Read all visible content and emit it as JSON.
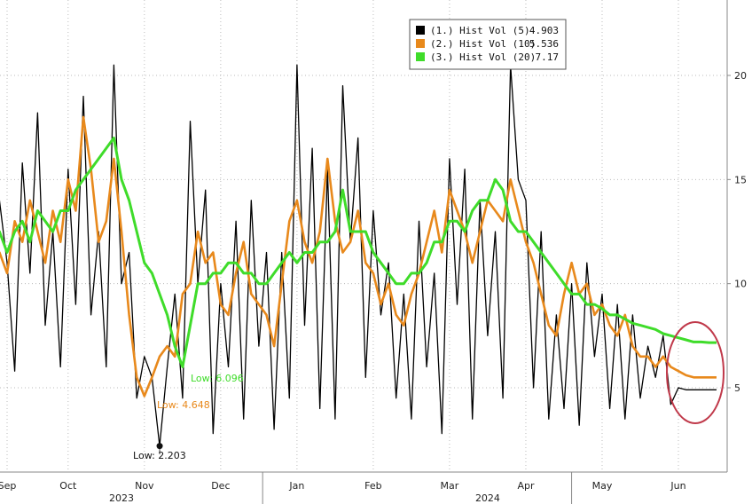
{
  "chart_data": {
    "type": "line",
    "title": "",
    "xlabel": "",
    "ylabel": "",
    "ylim": [
      0,
      24
    ],
    "x_ticks": [
      {
        "label": "Sep",
        "x": 0.2
      },
      {
        "label": "Oct",
        "x": 1.0
      },
      {
        "label": "Nov",
        "x": 2.0
      },
      {
        "label": "Dec",
        "x": 3.0
      },
      {
        "label": "Jan",
        "x": 4.0
      },
      {
        "label": "Feb",
        "x": 5.0
      },
      {
        "label": "Mar",
        "x": 6.0
      },
      {
        "label": "Apr",
        "x": 7.0
      },
      {
        "label": "May",
        "x": 8.0
      },
      {
        "label": "Jun",
        "x": 9.0
      }
    ],
    "year_labels": [
      {
        "label": "2023",
        "x": 1.7
      },
      {
        "label": "2024",
        "x": 6.5
      }
    ],
    "y_ticks": [
      5,
      10,
      15,
      20
    ],
    "grid": true,
    "legend_position": "top-center",
    "series": [
      {
        "name": "(1.) Hist Vol (5)",
        "last_value": "4.903",
        "color": "#000000",
        "x": [
          0.0,
          0.1,
          0.2,
          0.3,
          0.4,
          0.5,
          0.6,
          0.7,
          0.8,
          0.9,
          1.0,
          1.1,
          1.2,
          1.3,
          1.4,
          1.5,
          1.6,
          1.7,
          1.8,
          1.9,
          2.0,
          2.1,
          2.2,
          2.3,
          2.4,
          2.5,
          2.6,
          2.7,
          2.8,
          2.9,
          3.0,
          3.1,
          3.2,
          3.3,
          3.4,
          3.5,
          3.6,
          3.7,
          3.8,
          3.9,
          4.0,
          4.1,
          4.2,
          4.3,
          4.4,
          4.5,
          4.6,
          4.7,
          4.8,
          4.9,
          5.0,
          5.1,
          5.2,
          5.3,
          5.4,
          5.5,
          5.6,
          5.7,
          5.8,
          5.9,
          6.0,
          6.1,
          6.2,
          6.3,
          6.4,
          6.5,
          6.6,
          6.7,
          6.8,
          6.9,
          7.0,
          7.1,
          7.2,
          7.3,
          7.4,
          7.5,
          7.6,
          7.7,
          7.8,
          7.9,
          8.0,
          8.1,
          8.2,
          8.3,
          8.4,
          8.5,
          8.6,
          8.7,
          8.8,
          8.9,
          9.0,
          9.1,
          9.2,
          9.3,
          9.4,
          9.5
        ],
        "y": [
          9.5,
          14.0,
          11.0,
          5.8,
          15.8,
          10.5,
          18.2,
          8.0,
          12.5,
          6.0,
          15.5,
          9.0,
          19.0,
          8.5,
          12.5,
          6.0,
          20.5,
          10.0,
          11.5,
          4.5,
          6.5,
          5.5,
          2.2,
          6.0,
          9.5,
          4.5,
          17.8,
          10.0,
          14.5,
          2.8,
          10.0,
          6.0,
          13.0,
          3.5,
          14.0,
          7.0,
          11.5,
          3.0,
          11.5,
          4.5,
          20.5,
          8.0,
          16.5,
          4.0,
          15.5,
          3.5,
          19.5,
          12.0,
          17.0,
          5.5,
          13.5,
          8.5,
          11.0,
          4.5,
          9.5,
          3.5,
          13.0,
          6.0,
          10.5,
          2.8,
          16.0,
          9.0,
          15.5,
          3.5,
          14.0,
          7.5,
          12.5,
          4.5,
          20.5,
          15.0,
          14.0,
          5.0,
          12.5,
          3.5,
          8.5,
          4.0,
          10.0,
          3.2,
          11.0,
          6.5,
          9.5,
          4.0,
          9.0,
          3.5,
          8.5,
          4.5,
          7.0,
          5.5,
          7.5,
          4.2,
          5.0,
          4.9,
          4.9,
          4.9,
          4.9,
          4.9
        ]
      },
      {
        "name": "(2.) Hist Vol (10)",
        "last_value": "5.536",
        "color": "#e8891c",
        "x": [
          0.0,
          0.1,
          0.2,
          0.3,
          0.4,
          0.5,
          0.6,
          0.7,
          0.8,
          0.9,
          1.0,
          1.1,
          1.2,
          1.3,
          1.4,
          1.5,
          1.6,
          1.7,
          1.8,
          1.9,
          2.0,
          2.1,
          2.2,
          2.3,
          2.4,
          2.5,
          2.6,
          2.7,
          2.8,
          2.9,
          3.0,
          3.1,
          3.2,
          3.3,
          3.4,
          3.5,
          3.6,
          3.7,
          3.8,
          3.9,
          4.0,
          4.1,
          4.2,
          4.3,
          4.4,
          4.5,
          4.6,
          4.7,
          4.8,
          4.9,
          5.0,
          5.1,
          5.2,
          5.3,
          5.4,
          5.5,
          5.6,
          5.7,
          5.8,
          5.9,
          6.0,
          6.1,
          6.2,
          6.3,
          6.4,
          6.5,
          6.6,
          6.7,
          6.8,
          6.9,
          7.0,
          7.1,
          7.2,
          7.3,
          7.4,
          7.5,
          7.6,
          7.7,
          7.8,
          7.9,
          8.0,
          8.1,
          8.2,
          8.3,
          8.4,
          8.5,
          8.6,
          8.7,
          8.8,
          8.9,
          9.0,
          9.1,
          9.2,
          9.3,
          9.4,
          9.5
        ],
        "y": [
          9.0,
          11.5,
          10.5,
          13.0,
          12.0,
          14.0,
          12.5,
          11.0,
          13.5,
          12.0,
          15.0,
          13.5,
          18.0,
          15.5,
          12.0,
          13.0,
          16.0,
          12.5,
          8.5,
          5.5,
          4.6,
          5.5,
          6.5,
          7.0,
          6.5,
          9.5,
          10.0,
          12.5,
          11.0,
          11.5,
          9.0,
          8.5,
          10.5,
          12.0,
          9.5,
          9.0,
          8.5,
          7.0,
          10.0,
          13.0,
          14.0,
          12.0,
          11.0,
          12.5,
          16.0,
          13.0,
          11.5,
          12.0,
          13.5,
          11.0,
          10.5,
          9.0,
          10.0,
          8.5,
          8.0,
          9.5,
          10.5,
          12.0,
          13.5,
          11.5,
          14.5,
          13.5,
          12.5,
          11.0,
          12.5,
          14.0,
          13.5,
          13.0,
          15.0,
          13.5,
          12.0,
          11.0,
          9.5,
          8.0,
          7.5,
          9.5,
          11.0,
          9.5,
          10.0,
          8.5,
          9.0,
          8.0,
          7.5,
          8.5,
          7.0,
          6.5,
          6.5,
          6.0,
          6.5,
          6.0,
          5.8,
          5.6,
          5.5,
          5.5,
          5.5,
          5.5
        ]
      },
      {
        "name": "(3.) Hist Vol (20)",
        "last_value": "7.17",
        "color": "#3fdc2a",
        "x": [
          0.0,
          0.1,
          0.2,
          0.3,
          0.4,
          0.5,
          0.6,
          0.7,
          0.8,
          0.9,
          1.0,
          1.1,
          1.2,
          1.3,
          1.4,
          1.5,
          1.6,
          1.7,
          1.8,
          1.9,
          2.0,
          2.1,
          2.2,
          2.3,
          2.4,
          2.5,
          2.6,
          2.7,
          2.8,
          2.9,
          3.0,
          3.1,
          3.2,
          3.3,
          3.4,
          3.5,
          3.6,
          3.7,
          3.8,
          3.9,
          4.0,
          4.1,
          4.2,
          4.3,
          4.4,
          4.5,
          4.6,
          4.7,
          4.8,
          4.9,
          5.0,
          5.1,
          5.2,
          5.3,
          5.4,
          5.5,
          5.6,
          5.7,
          5.8,
          5.9,
          6.0,
          6.1,
          6.2,
          6.3,
          6.4,
          6.5,
          6.6,
          6.7,
          6.8,
          6.9,
          7.0,
          7.1,
          7.2,
          7.3,
          7.4,
          7.5,
          7.6,
          7.7,
          7.8,
          7.9,
          8.0,
          8.1,
          8.2,
          8.3,
          8.4,
          8.5,
          8.6,
          8.7,
          8.8,
          8.9,
          9.0,
          9.1,
          9.2,
          9.3,
          9.4,
          9.5
        ],
        "y": [
          12.0,
          12.5,
          11.5,
          12.5,
          13.0,
          12.0,
          13.5,
          13.0,
          12.5,
          13.5,
          13.5,
          14.5,
          15.0,
          15.5,
          16.0,
          16.5,
          17.0,
          15.0,
          14.0,
          12.5,
          11.0,
          10.5,
          9.5,
          8.5,
          7.0,
          6.0,
          8.0,
          10.0,
          10.0,
          10.5,
          10.5,
          11.0,
          11.0,
          10.5,
          10.5,
          10.0,
          10.0,
          10.5,
          11.0,
          11.5,
          11.0,
          11.5,
          11.5,
          12.0,
          12.0,
          12.5,
          14.5,
          12.5,
          12.5,
          12.5,
          11.5,
          11.0,
          10.5,
          10.0,
          10.0,
          10.5,
          10.5,
          11.0,
          12.0,
          12.0,
          13.0,
          13.0,
          12.5,
          13.5,
          14.0,
          14.0,
          15.0,
          14.5,
          13.0,
          12.5,
          12.5,
          12.0,
          11.5,
          11.0,
          10.5,
          10.0,
          9.5,
          9.5,
          9.0,
          9.0,
          8.8,
          8.5,
          8.5,
          8.3,
          8.1,
          8.0,
          7.9,
          7.8,
          7.6,
          7.5,
          7.4,
          7.3,
          7.2,
          7.2,
          7.17,
          7.17
        ]
      }
    ],
    "annotations": [
      {
        "text": "Low: 2.203",
        "x": 2.2,
        "y": 2.203,
        "color": "#111111"
      },
      {
        "text": "Low: 4.648",
        "x": 2.3,
        "y": 4.648,
        "color": "#e8891c"
      },
      {
        "text": "Low: 6.096",
        "x": 2.6,
        "y": 6.096,
        "color": "#3fdc2a"
      }
    ],
    "highlight_circle": {
      "x_center": 9.1,
      "y_center": 6.0,
      "color": "#c0394a"
    }
  }
}
